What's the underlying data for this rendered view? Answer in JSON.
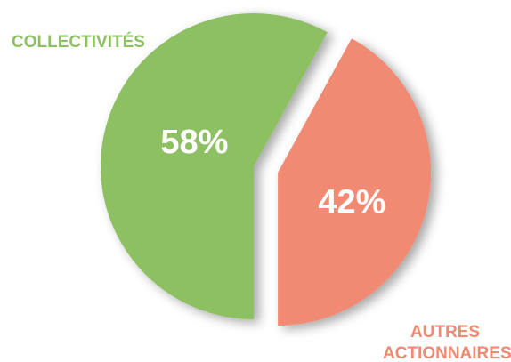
{
  "chart_data": {
    "type": "pie",
    "categories": [
      "COLLECTIVITÉS",
      "AUTRES ACTIONNAIRES"
    ],
    "values": [
      58,
      42
    ],
    "value_labels": [
      "58%",
      "42%"
    ],
    "colors": [
      "#8dc063",
      "#f18a72"
    ]
  }
}
